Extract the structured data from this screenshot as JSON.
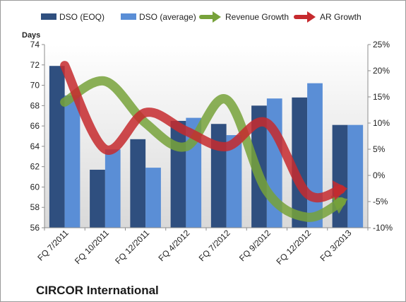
{
  "chart_data": {
    "type": "bar",
    "categories": [
      "FQ 7/2011",
      "FQ 10/2011",
      "FQ 12/2011",
      "FQ 4/2012",
      "FQ 7/2012",
      "FQ 9/2012",
      "FQ 12/2012",
      "FQ 3/2013"
    ],
    "series": [
      {
        "name": "DSO (EOQ)",
        "type": "bar",
        "axis": "left",
        "color": "#2f4f7f",
        "values": [
          71.9,
          61.7,
          64.7,
          66.5,
          66.2,
          68.0,
          68.8,
          66.1
        ]
      },
      {
        "name": "DSO (average)",
        "type": "bar",
        "axis": "left",
        "color": "#5a8ed6",
        "values": [
          69.0,
          63.7,
          61.9,
          66.8,
          65.1,
          68.7,
          70.2,
          66.1
        ]
      },
      {
        "name": "Revenue Growth",
        "type": "line",
        "axis": "right",
        "color": "#77a23a",
        "values": [
          14.0,
          18.0,
          10.0,
          5.5,
          14.5,
          -3.0,
          -8.0,
          -4.5
        ]
      },
      {
        "name": "AR Growth",
        "type": "line",
        "axis": "right",
        "color": "#c62a2e",
        "values": [
          21.0,
          5.0,
          12.0,
          8.5,
          5.5,
          10.0,
          -3.5,
          -2.5
        ]
      }
    ],
    "ylabel": "Days",
    "ylim": [
      56,
      74
    ],
    "yticks": [
      "74",
      "72",
      "70",
      "68",
      "66",
      "64",
      "62",
      "60",
      "58",
      "56"
    ],
    "y2lim": [
      -10,
      25
    ],
    "y2ticks": [
      "25%",
      "20%",
      "15%",
      "10%",
      "5%",
      "0%",
      "-5%",
      "-10%"
    ],
    "grid": false,
    "legend_position": "top",
    "plot_background": "#e4e4e4",
    "company": "CIRCOR International"
  }
}
